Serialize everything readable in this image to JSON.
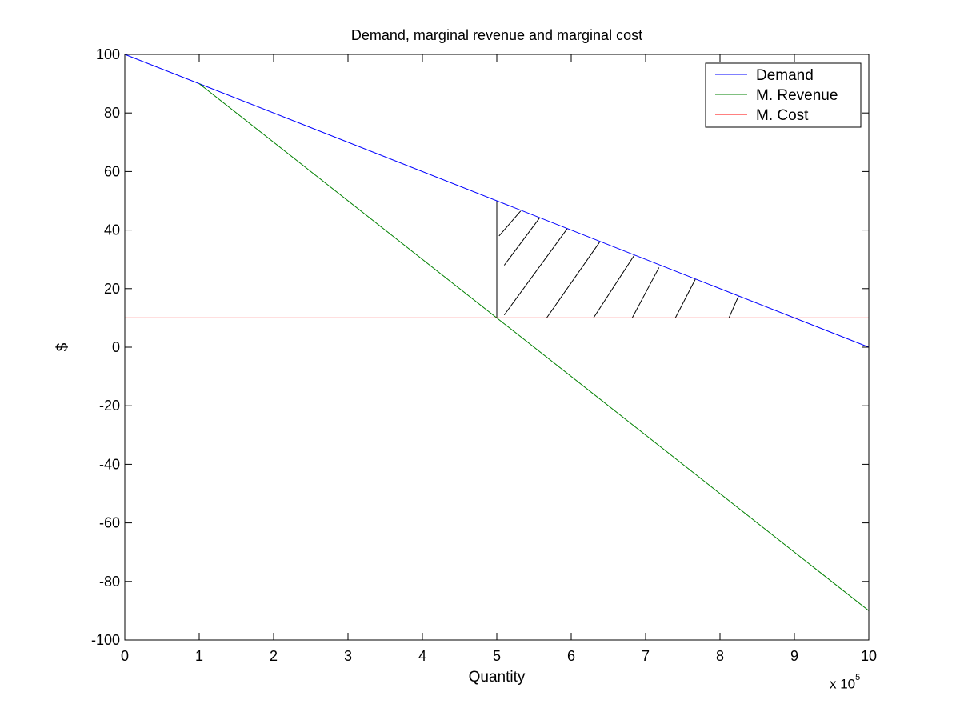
{
  "chart_data": {
    "type": "line",
    "title": "Demand, marginal revenue and marginal cost",
    "xlabel": "Quantity",
    "ylabel": "$",
    "x_multiplier_label": "x 10",
    "x_multiplier_exponent": "5",
    "xlim": [
      0,
      10
    ],
    "ylim": [
      -100,
      100
    ],
    "x_ticks": [
      0,
      1,
      2,
      3,
      4,
      5,
      6,
      7,
      8,
      9,
      10
    ],
    "y_ticks": [
      -100,
      -80,
      -60,
      -40,
      -20,
      0,
      20,
      40,
      60,
      80,
      100
    ],
    "grid": false,
    "legend_position": "top-right",
    "series": [
      {
        "name": "Demand",
        "color": "#0000ff",
        "x": [
          0,
          10
        ],
        "y": [
          100,
          0
        ]
      },
      {
        "name": "M. Revenue",
        "color": "#008000",
        "x": [
          1,
          10
        ],
        "y": [
          90,
          -90
        ]
      },
      {
        "name": "M. Cost",
        "color": "#ff0000",
        "x": [
          0,
          10
        ],
        "y": [
          10,
          10
        ]
      }
    ],
    "annotations": [
      {
        "type": "vertical_line",
        "x": 5,
        "y_from": 10,
        "y_to": 50,
        "color": "#000000"
      },
      {
        "type": "hatched_region",
        "description_none": true,
        "x_from": 5,
        "x_to": 9,
        "bottom_y": 10,
        "top": "Demand"
      }
    ]
  }
}
